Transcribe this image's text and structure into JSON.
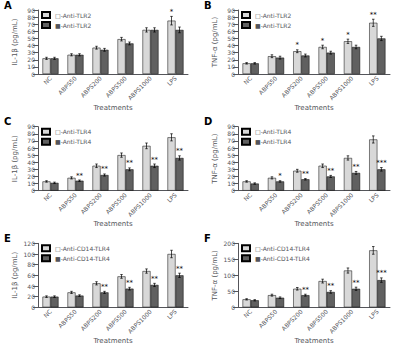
{
  "chart_data": [
    {
      "type": "bar",
      "title": "A",
      "xlabel": "Treatments",
      "ylabel": "IL-1β (pg/mL)",
      "categories": [
        "NC",
        "ABPS50",
        "ABPS200",
        "ABPS500",
        "ABPS1000",
        "LPS"
      ],
      "series": [
        {
          "name": "□-Anti-TLR2",
          "color": "#d8d8d8",
          "values": [
            22,
            27,
            37,
            49,
            62,
            75
          ],
          "errors": [
            1.5,
            1.5,
            2,
            2.5,
            3,
            6
          ],
          "annotations": [
            {
              "category": "LPS",
              "text": "*"
            }
          ]
        },
        {
          "name": "■-Anti-TLR2",
          "color": "#606060",
          "values": [
            22,
            27,
            34,
            43,
            62,
            62
          ],
          "errors": [
            1.5,
            1.5,
            2,
            2,
            3,
            4
          ]
        }
      ],
      "ylim": [
        0,
        90
      ],
      "yticks": [
        0,
        10,
        20,
        30,
        40,
        50,
        60,
        70,
        80,
        90
      ],
      "legend": "upper left",
      "grid": false
    },
    {
      "type": "bar",
      "title": "B",
      "xlabel": "Treatments",
      "ylabel": "TNF-α (pg/mL)",
      "categories": [
        "NC",
        "ABPS50",
        "ABPS200",
        "ABPS500",
        "ABPS1000",
        "LPS"
      ],
      "series": [
        {
          "name": "□-Anti-TLR2",
          "color": "#d8d8d8",
          "values": [
            15,
            25,
            32,
            38,
            46,
            72
          ],
          "errors": [
            1,
            2,
            2,
            2.5,
            3,
            5
          ],
          "annotations": [
            {
              "category": "ABPS200",
              "text": "*"
            },
            {
              "category": "ABPS500",
              "text": "*"
            },
            {
              "category": "ABPS1000",
              "text": "*"
            },
            {
              "category": "LPS",
              "text": "**"
            }
          ]
        },
        {
          "name": "■-Anti-TLR2",
          "color": "#606060",
          "values": [
            15,
            23,
            26,
            30,
            38,
            50
          ],
          "errors": [
            1,
            2,
            2,
            2,
            2.5,
            3
          ]
        }
      ],
      "ylim": [
        0,
        90
      ],
      "yticks": [
        0,
        10,
        20,
        30,
        40,
        50,
        60,
        70,
        80,
        90
      ],
      "legend": "upper left",
      "grid": false
    },
    {
      "type": "bar",
      "title": "C",
      "xlabel": "Treatments",
      "ylabel": "IL-1β (pg/mL)",
      "categories": [
        "NC",
        "ABPS50",
        "ABPS200",
        "ABPS500",
        "ABPS1000",
        "LPS"
      ],
      "series": [
        {
          "name": "□-Anti-TLR4",
          "color": "#d8d8d8",
          "values": [
            13,
            18,
            35,
            50,
            63,
            75
          ],
          "errors": [
            1,
            1.5,
            2.5,
            3,
            4,
            5
          ]
        },
        {
          "name": "■-Anti-TLR4",
          "color": "#606060",
          "values": [
            11,
            14,
            22,
            30,
            35,
            46
          ],
          "errors": [
            1,
            1,
            1.5,
            2,
            2.5,
            3
          ],
          "annotations": [
            {
              "category": "ABPS50",
              "text": "**"
            },
            {
              "category": "ABPS200",
              "text": "**"
            },
            {
              "category": "ABPS500",
              "text": "**"
            },
            {
              "category": "ABPS1000",
              "text": "**"
            },
            {
              "category": "LPS",
              "text": "**"
            }
          ]
        }
      ],
      "ylim": [
        0,
        90
      ],
      "yticks": [
        0,
        10,
        20,
        30,
        40,
        50,
        60,
        70,
        80,
        90
      ],
      "legend": "upper left",
      "grid": false
    },
    {
      "type": "bar",
      "title": "D",
      "xlabel": "Treatments",
      "ylabel": "TNF-α (pg/mL)",
      "categories": [
        "NC",
        "ABPS50",
        "ABPS200",
        "ABPS500",
        "ABPS1000",
        "LPS"
      ],
      "series": [
        {
          "name": "□-Anti-TLR4",
          "color": "#d8d8d8",
          "values": [
            13,
            18,
            28,
            35,
            46,
            72
          ],
          "errors": [
            1,
            1.5,
            2,
            2.5,
            3,
            5
          ]
        },
        {
          "name": "■-Anti-TLR4",
          "color": "#606060",
          "values": [
            10,
            13,
            16,
            20,
            25,
            30
          ],
          "errors": [
            1,
            1,
            1,
            1.5,
            2,
            2.5
          ],
          "annotations": [
            {
              "category": "ABPS50",
              "text": "*"
            },
            {
              "category": "ABPS200",
              "text": "**"
            },
            {
              "category": "ABPS500",
              "text": "**"
            },
            {
              "category": "ABPS1000",
              "text": "**"
            },
            {
              "category": "LPS",
              "text": "***"
            }
          ]
        }
      ],
      "ylim": [
        0,
        90
      ],
      "yticks": [
        0,
        10,
        20,
        30,
        40,
        50,
        60,
        70,
        80,
        90
      ],
      "legend": "upper left",
      "grid": false
    },
    {
      "type": "bar",
      "title": "E",
      "xlabel": "Treatments",
      "ylabel": "IL-1β (pg/mL)",
      "categories": [
        "NC",
        "ABPS50",
        "ABPS200",
        "ABPS500",
        "ABPS1000",
        "LPS"
      ],
      "series": [
        {
          "name": "□-Anti-CD14-TLR4",
          "color": "#d8d8d8",
          "values": [
            20,
            28,
            45,
            58,
            68,
            100
          ],
          "errors": [
            1.5,
            2,
            3,
            3.5,
            4,
            7
          ]
        },
        {
          "name": "■-Anti-CD14-TLR4",
          "color": "#606060",
          "values": [
            20,
            22,
            28,
            35,
            42,
            60
          ],
          "errors": [
            1.5,
            1.5,
            2,
            2.5,
            3,
            4
          ],
          "annotations": [
            {
              "category": "ABPS200",
              "text": "**"
            },
            {
              "category": "ABPS500",
              "text": "**"
            },
            {
              "category": "ABPS1000",
              "text": "**"
            },
            {
              "category": "LPS",
              "text": "**"
            }
          ]
        }
      ],
      "ylim": [
        0,
        120
      ],
      "yticks": [
        0,
        20,
        40,
        60,
        80,
        100,
        120
      ],
      "legend": "upper left",
      "grid": false
    },
    {
      "type": "bar",
      "title": "F",
      "xlabel": "Treatments",
      "ylabel": "TNF-α (pg/mL)",
      "categories": [
        "NC",
        "ABPS50",
        "ABPS200",
        "ABPS500",
        "ABPS1000",
        "LPS"
      ],
      "series": [
        {
          "name": "□-Anti-CD14-TLR4",
          "color": "#d8d8d8",
          "values": [
            25,
            38,
            58,
            82,
            115,
            178
          ],
          "errors": [
            2,
            3,
            4,
            6,
            8,
            12
          ]
        },
        {
          "name": "■-Anti-CD14-TLR4",
          "color": "#606060",
          "values": [
            22,
            30,
            38,
            48,
            58,
            85
          ],
          "errors": [
            2,
            2.5,
            3,
            4,
            5,
            7
          ],
          "annotations": [
            {
              "category": "ABPS200",
              "text": "**"
            },
            {
              "category": "ABPS500",
              "text": "**"
            },
            {
              "category": "ABPS1000",
              "text": "**"
            },
            {
              "category": "LPS",
              "text": "***"
            }
          ]
        }
      ],
      "ylim": [
        0,
        200
      ],
      "yticks": [
        0,
        50,
        100,
        150,
        200
      ],
      "legend": "upper left",
      "grid": false
    }
  ]
}
